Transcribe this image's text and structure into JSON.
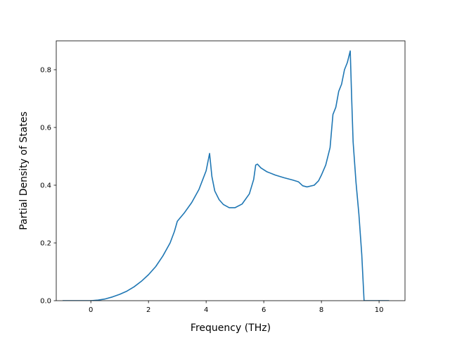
{
  "chart_data": {
    "type": "line",
    "title": "",
    "xlabel": "Frequency (THz)",
    "ylabel": "Partial Density of States",
    "xlim": [
      -1.2,
      10.9
    ],
    "ylim": [
      0.0,
      0.9
    ],
    "xticks": [
      0,
      2,
      4,
      6,
      8,
      10
    ],
    "yticks": [
      0.0,
      0.2,
      0.4,
      0.6,
      0.8
    ],
    "xtick_labels": [
      "0",
      "2",
      "4",
      "6",
      "8",
      "10"
    ],
    "ytick_labels": [
      "0.0",
      "0.2",
      "0.4",
      "0.6",
      "0.8"
    ],
    "grid": false,
    "legend": "none",
    "series": [
      {
        "color": "#1f77b4",
        "x": [
          -0.98,
          -0.5,
          0.0,
          0.25,
          0.5,
          0.75,
          1.0,
          1.25,
          1.5,
          1.75,
          2.0,
          2.25,
          2.5,
          2.75,
          2.9,
          3.0,
          3.25,
          3.5,
          3.75,
          4.0,
          4.12,
          4.2,
          4.3,
          4.45,
          4.6,
          4.8,
          5.0,
          5.25,
          5.5,
          5.65,
          5.72,
          5.78,
          5.9,
          6.1,
          6.4,
          6.7,
          7.0,
          7.2,
          7.35,
          7.5,
          7.75,
          7.9,
          8.0,
          8.15,
          8.3,
          8.4,
          8.5,
          8.6,
          8.7,
          8.8,
          8.9,
          9.0,
          9.05,
          9.1,
          9.2,
          9.3,
          9.4,
          9.48,
          9.55,
          10.0,
          10.35
        ],
        "y": [
          0.0,
          0.0,
          0.0,
          0.002,
          0.006,
          0.013,
          0.022,
          0.033,
          0.048,
          0.067,
          0.09,
          0.118,
          0.155,
          0.2,
          0.24,
          0.275,
          0.305,
          0.34,
          0.385,
          0.45,
          0.51,
          0.43,
          0.38,
          0.35,
          0.333,
          0.322,
          0.322,
          0.335,
          0.37,
          0.42,
          0.47,
          0.473,
          0.46,
          0.447,
          0.435,
          0.426,
          0.418,
          0.412,
          0.398,
          0.394,
          0.4,
          0.415,
          0.435,
          0.47,
          0.53,
          0.645,
          0.67,
          0.725,
          0.75,
          0.8,
          0.825,
          0.865,
          0.7,
          0.55,
          0.41,
          0.3,
          0.16,
          0.0,
          0.0,
          0.0,
          0.0
        ]
      }
    ]
  }
}
